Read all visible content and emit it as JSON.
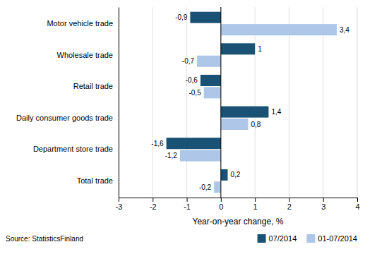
{
  "chart_data": {
    "type": "bar",
    "orientation": "horizontal",
    "categories": [
      "Motor vehicle trade",
      "Wholesale trade",
      "Retail trade",
      "Daily consumer goods trade",
      "Department store trade",
      "Total trade"
    ],
    "series": [
      {
        "name": "07/2014",
        "color": "#1a5276",
        "values": [
          -0.9,
          1.0,
          -0.6,
          1.4,
          -1.6,
          0.2
        ],
        "value_labels": [
          "-0,9",
          "1",
          "-0,6",
          "1,4",
          "-1,6",
          "0,2"
        ]
      },
      {
        "name": "01-07/2014",
        "color": "#aec6e8",
        "values": [
          3.4,
          -0.7,
          -0.5,
          0.8,
          -1.2,
          -0.2
        ],
        "value_labels": [
          "3,4",
          "-0,7",
          "-0,5",
          "0,8",
          "-1,2",
          "-0,2"
        ]
      }
    ],
    "xlabel": "Year-on-year change, %",
    "xlim": [
      -3,
      4
    ],
    "xticks": [
      -3,
      -2,
      -1,
      0,
      1,
      2,
      3,
      4
    ],
    "grid": true,
    "data_labels": true,
    "legend": "lower right",
    "annotations": [
      "Source: StatisticsFinland"
    ]
  }
}
